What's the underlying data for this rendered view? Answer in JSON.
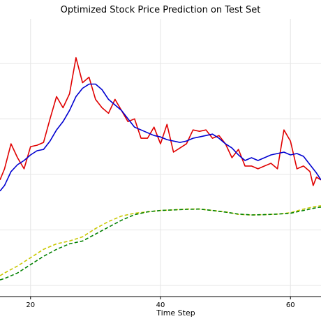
{
  "chart_data": {
    "type": "line",
    "title": "Optimized Stock Price Prediction on Test Set",
    "xlabel": "Time Step",
    "ylabel": "",
    "xlim": [
      15.3,
      64.7
    ],
    "ylim": [
      0,
      1
    ],
    "x_ticks": [
      20,
      40,
      60
    ],
    "grid": true,
    "series": [
      {
        "color": "#e00000",
        "style": "solid",
        "points": [
          [
            15.3,
            0.42
          ],
          [
            16,
            0.46
          ],
          [
            17,
            0.55
          ],
          [
            18,
            0.5
          ],
          [
            19,
            0.46
          ],
          [
            20,
            0.54
          ],
          [
            21,
            0.545
          ],
          [
            22,
            0.555
          ],
          [
            23,
            0.64
          ],
          [
            24,
            0.72
          ],
          [
            25,
            0.68
          ],
          [
            26,
            0.73
          ],
          [
            27,
            0.86
          ],
          [
            28,
            0.77
          ],
          [
            29,
            0.79
          ],
          [
            30,
            0.71
          ],
          [
            31,
            0.68
          ],
          [
            32,
            0.66
          ],
          [
            33,
            0.71
          ],
          [
            34,
            0.67
          ],
          [
            35,
            0.63
          ],
          [
            36,
            0.64
          ],
          [
            37,
            0.57
          ],
          [
            38,
            0.57
          ],
          [
            39,
            0.61
          ],
          [
            40,
            0.55
          ],
          [
            41,
            0.62
          ],
          [
            42,
            0.52
          ],
          [
            43,
            0.535
          ],
          [
            44,
            0.55
          ],
          [
            45,
            0.6
          ],
          [
            46,
            0.595
          ],
          [
            47,
            0.6
          ],
          [
            48,
            0.57
          ],
          [
            49,
            0.58
          ],
          [
            50,
            0.55
          ],
          [
            51,
            0.5
          ],
          [
            52,
            0.53
          ],
          [
            53,
            0.47
          ],
          [
            54,
            0.47
          ],
          [
            55,
            0.46
          ],
          [
            56,
            0.47
          ],
          [
            57,
            0.48
          ],
          [
            58,
            0.46
          ],
          [
            59,
            0.6
          ],
          [
            60,
            0.56
          ],
          [
            61,
            0.46
          ],
          [
            62,
            0.47
          ],
          [
            63,
            0.45
          ],
          [
            63.5,
            0.4
          ],
          [
            64,
            0.43
          ],
          [
            64.7,
            0.42
          ]
        ]
      },
      {
        "color": "#0000d0",
        "style": "solid",
        "points": [
          [
            15.3,
            0.38
          ],
          [
            16,
            0.4
          ],
          [
            17,
            0.45
          ],
          [
            18,
            0.475
          ],
          [
            19,
            0.49
          ],
          [
            20,
            0.51
          ],
          [
            21,
            0.525
          ],
          [
            22,
            0.53
          ],
          [
            23,
            0.56
          ],
          [
            24,
            0.6
          ],
          [
            25,
            0.63
          ],
          [
            26,
            0.67
          ],
          [
            27,
            0.72
          ],
          [
            28,
            0.75
          ],
          [
            29,
            0.765
          ],
          [
            30,
            0.765
          ],
          [
            31,
            0.745
          ],
          [
            32,
            0.71
          ],
          [
            33,
            0.69
          ],
          [
            34,
            0.67
          ],
          [
            35,
            0.64
          ],
          [
            36,
            0.61
          ],
          [
            37,
            0.6
          ],
          [
            38,
            0.59
          ],
          [
            39,
            0.58
          ],
          [
            40,
            0.575
          ],
          [
            41,
            0.565
          ],
          [
            42,
            0.56
          ],
          [
            43,
            0.555
          ],
          [
            44,
            0.56
          ],
          [
            45,
            0.57
          ],
          [
            46,
            0.575
          ],
          [
            47,
            0.58
          ],
          [
            48,
            0.585
          ],
          [
            49,
            0.57
          ],
          [
            50,
            0.55
          ],
          [
            51,
            0.535
          ],
          [
            52,
            0.51
          ],
          [
            53,
            0.49
          ],
          [
            54,
            0.5
          ],
          [
            55,
            0.49
          ],
          [
            56,
            0.5
          ],
          [
            57,
            0.51
          ],
          [
            58,
            0.515
          ],
          [
            59,
            0.52
          ],
          [
            60,
            0.51
          ],
          [
            61,
            0.515
          ],
          [
            62,
            0.505
          ],
          [
            63,
            0.475
          ],
          [
            64,
            0.445
          ],
          [
            64.7,
            0.42
          ]
        ]
      },
      {
        "color": "#c8c800",
        "style": "dashed",
        "points": [
          [
            15.3,
            0.075
          ],
          [
            16,
            0.085
          ],
          [
            18,
            0.11
          ],
          [
            20,
            0.14
          ],
          [
            22,
            0.17
          ],
          [
            24,
            0.19
          ],
          [
            26,
            0.2
          ],
          [
            28,
            0.215
          ],
          [
            30,
            0.245
          ],
          [
            32,
            0.27
          ],
          [
            34,
            0.29
          ],
          [
            36,
            0.3
          ],
          [
            38,
            0.305
          ],
          [
            40,
            0.31
          ],
          [
            42,
            0.312
          ],
          [
            44,
            0.315
          ],
          [
            46,
            0.315
          ],
          [
            48,
            0.31
          ],
          [
            50,
            0.305
          ],
          [
            52,
            0.296
          ],
          [
            54,
            0.294
          ],
          [
            56,
            0.295
          ],
          [
            58,
            0.297
          ],
          [
            60,
            0.302
          ],
          [
            62,
            0.315
          ],
          [
            64,
            0.325
          ],
          [
            64.7,
            0.327
          ]
        ]
      },
      {
        "color": "#008000",
        "style": "dashed",
        "points": [
          [
            15.3,
            0.06
          ],
          [
            16,
            0.065
          ],
          [
            18,
            0.085
          ],
          [
            20,
            0.115
          ],
          [
            22,
            0.145
          ],
          [
            24,
            0.17
          ],
          [
            26,
            0.19
          ],
          [
            28,
            0.2
          ],
          [
            30,
            0.225
          ],
          [
            32,
            0.25
          ],
          [
            34,
            0.275
          ],
          [
            36,
            0.295
          ],
          [
            38,
            0.305
          ],
          [
            40,
            0.31
          ],
          [
            42,
            0.312
          ],
          [
            44,
            0.314
          ],
          [
            46,
            0.315
          ],
          [
            48,
            0.31
          ],
          [
            50,
            0.304
          ],
          [
            52,
            0.297
          ],
          [
            54,
            0.294
          ],
          [
            56,
            0.295
          ],
          [
            58,
            0.297
          ],
          [
            60,
            0.3
          ],
          [
            62,
            0.31
          ],
          [
            64,
            0.32
          ],
          [
            64.7,
            0.322
          ]
        ]
      }
    ]
  }
}
